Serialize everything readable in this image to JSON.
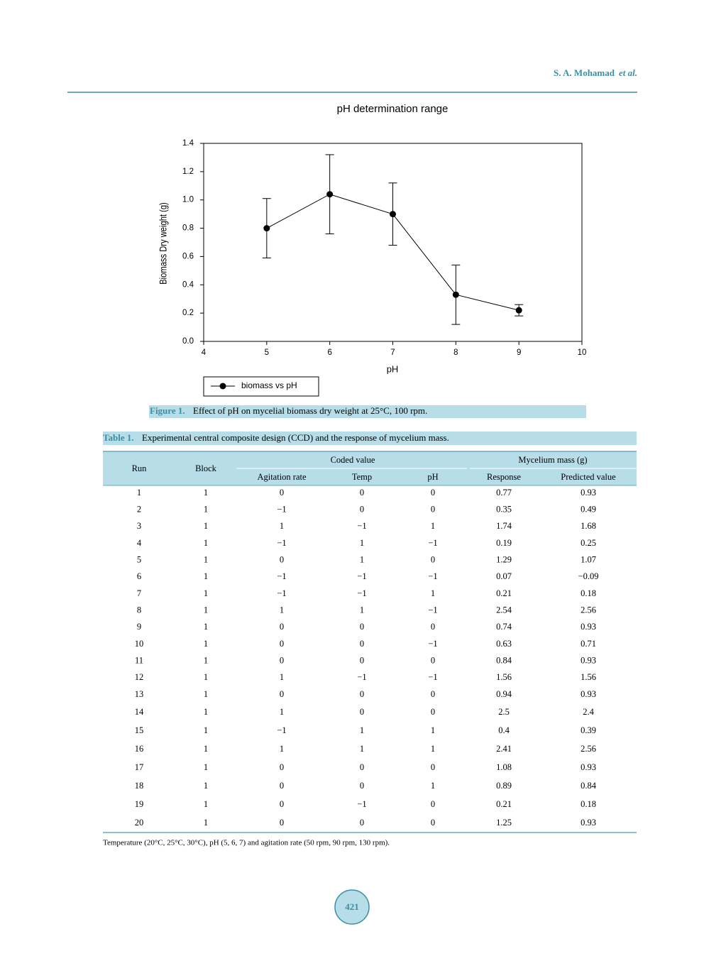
{
  "header": {
    "author": "S. A. Mohamad",
    "etal": "et al."
  },
  "chart_data": {
    "type": "line",
    "title": "pH determination range",
    "x_label": "pH",
    "y_label": "Biomass Dry weight (g)",
    "x": [
      5,
      6,
      7,
      8,
      9
    ],
    "series": [
      {
        "name": "biomass vs pH",
        "color": "#000000",
        "values": [
          0.8,
          1.04,
          0.9,
          0.33,
          0.22
        ],
        "errors": [
          0.21,
          0.28,
          0.22,
          0.21,
          0.04
        ]
      }
    ],
    "xlim": [
      4,
      10
    ],
    "xticks": [
      4,
      5,
      6,
      7,
      8,
      9,
      10
    ],
    "ylim": [
      0,
      1.4
    ],
    "yticks": [
      {
        "value": 0,
        "label": "0.0"
      },
      0.2,
      0.4,
      0.6,
      0.8,
      {
        "value": 1,
        "label": "1.0"
      },
      1.2,
      1.4
    ],
    "grid": false,
    "legend": "below"
  },
  "figure_caption": {
    "label": "Figure 1.",
    "text": "Effect of pH on mycelial biomass dry weight at 25°C, 100 rpm."
  },
  "table_caption": {
    "label": "Table 1.",
    "text": "Experimental central composite design (CCD) and the response of mycelium mass."
  },
  "table": {
    "headers": [
      "Run",
      "Block",
      "Coded value",
      "Agitation rate",
      "Temp",
      "pH",
      "Mycelium mass (g)",
      "Response",
      "Predicted value"
    ],
    "rows": [
      [
        "1",
        "1",
        "0",
        "0",
        "0",
        "0.77",
        "0.93"
      ],
      [
        "2",
        "1",
        "−1",
        "0",
        "0",
        "0.35",
        "0.49"
      ],
      [
        "3",
        "1",
        "1",
        "−1",
        "1",
        "1.74",
        "1.68"
      ],
      [
        "4",
        "1",
        "−1",
        "1",
        "−1",
        "0.19",
        "0.25"
      ],
      [
        "5",
        "1",
        "0",
        "1",
        "0",
        "1.29",
        "1.07"
      ],
      [
        "6",
        "1",
        "−1",
        "−1",
        "−1",
        "0.07",
        "−0.09"
      ],
      [
        "7",
        "1",
        "−1",
        "−1",
        "1",
        "0.21",
        "0.18"
      ],
      [
        "8",
        "1",
        "1",
        "1",
        "−1",
        "2.54",
        "2.56"
      ],
      [
        "9",
        "1",
        "0",
        "0",
        "0",
        "0.74",
        "0.93"
      ],
      [
        "10",
        "1",
        "0",
        "0",
        "−1",
        "0.63",
        "0.71"
      ],
      [
        "11",
        "1",
        "0",
        "0",
        "0",
        "0.84",
        "0.93"
      ],
      [
        "12",
        "1",
        "1",
        "−1",
        "−1",
        "1.56",
        "1.56"
      ],
      [
        "13",
        "1",
        "0",
        "0",
        "0",
        "0.94",
        "0.93"
      ],
      [
        "14",
        "1",
        "1",
        "0",
        "0",
        "2.5",
        "2.4"
      ],
      [
        "15",
        "1",
        "−1",
        "1",
        "1",
        "0.4",
        "0.39"
      ],
      [
        "16",
        "1",
        "1",
        "1",
        "1",
        "2.41",
        "2.56"
      ],
      [
        "17",
        "1",
        "0",
        "0",
        "0",
        "1.08",
        "0.93"
      ],
      [
        "18",
        "1",
        "0",
        "0",
        "1",
        "0.89",
        "0.84"
      ],
      [
        "19",
        "1",
        "0",
        "−1",
        "0",
        "0.21",
        "0.18"
      ],
      [
        "20",
        "1",
        "0",
        "0",
        "0",
        "1.25",
        "0.93"
      ]
    ]
  },
  "footnote": "Temperature (20°C, 25°C, 30°C), pH (5, 6, 7) and agitation rate (50 rpm, 90 rpm, 130 rpm).",
  "page_number": "421"
}
